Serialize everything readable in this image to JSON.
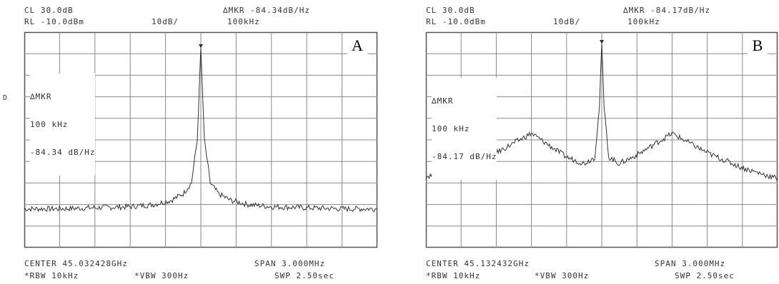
{
  "chart_data": [
    {
      "type": "line",
      "panel_label": "A",
      "header": {
        "cl": "CL 30.0dB",
        "rl": "RL -10.0dBm",
        "scale": "10dB/",
        "mkr": "∆MKR -84.34dB/Hz",
        "mkr_freq": "100kHz"
      },
      "marker_note": [
        "∆MKR",
        "100 kHz",
        "-84.34 dB/Hz"
      ],
      "side_label": "D",
      "footer": {
        "center": "CENTER 45.032428GHz",
        "span": "SPAN 3.000MHz",
        "rbw": "*RBW 10kHz",
        "vbw": "*VBW 300Hz",
        "swp": "SWP 2.50sec"
      },
      "xlim": [
        -1.5,
        1.5
      ],
      "ylim": [
        -110,
        -10
      ],
      "grid": true,
      "series": [
        {
          "x": [
            -1.5,
            -1.2,
            -0.9,
            -0.6,
            -0.4,
            -0.25,
            -0.15,
            -0.08,
            -0.03,
            0.0,
            0.03,
            0.08,
            0.15,
            0.25,
            0.4,
            0.6,
            0.9,
            1.2,
            1.5
          ],
          "y": [
            -92,
            -92,
            -91.5,
            -91,
            -90,
            -88,
            -85,
            -80,
            -60,
            -17,
            -60,
            -80,
            -85,
            -88,
            -90,
            -91,
            -91.5,
            -92,
            -92
          ]
        }
      ]
    },
    {
      "type": "line",
      "panel_label": "B",
      "header": {
        "cl": "CL 30.0dB",
        "rl": "RL -10.0dBm",
        "scale": "10dB/",
        "mkr": "∆MKR -84.17dB/Hz",
        "mkr_freq": "100kHz"
      },
      "marker_note": [
        "∆MKR",
        "100 kHz",
        "-84.17 dB/Hz"
      ],
      "footer": {
        "center": "CENTER 45.132432GHz",
        "span": "SPAN 3.000MHz",
        "rbw": "*RBW 10kHz",
        "vbw": "*VBW 300Hz",
        "swp": "SWP 2.50sec"
      },
      "xlim": [
        -1.5,
        1.5
      ],
      "ylim": [
        -110,
        -10
      ],
      "grid": true,
      "series": [
        {
          "x": [
            -1.5,
            -1.2,
            -0.9,
            -0.6,
            -0.3,
            -0.15,
            -0.06,
            -0.02,
            0.0,
            0.02,
            0.06,
            0.15,
            0.3,
            0.6,
            0.9,
            1.2,
            1.5
          ],
          "y": [
            -77,
            -73,
            -66,
            -57,
            -68,
            -71,
            -68,
            -45,
            -15,
            -45,
            -68,
            -71,
            -67,
            -57,
            -66,
            -73,
            -78
          ]
        }
      ]
    }
  ]
}
